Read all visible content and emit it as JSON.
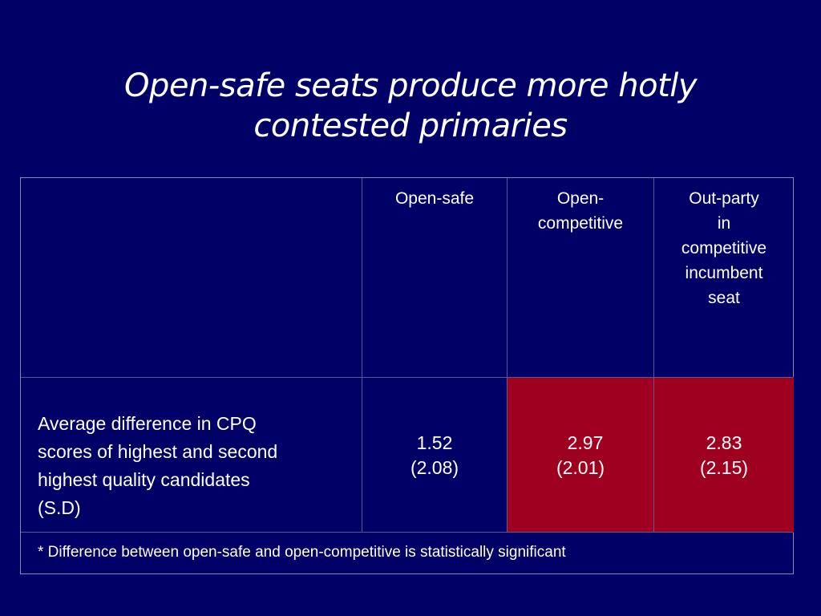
{
  "title": {
    "line1": "Open-safe seats produce more hotly",
    "line2": "contested primaries"
  },
  "table": {
    "headers": {
      "open_safe": [
        "Open-safe"
      ],
      "open_competitive": [
        "Open-",
        "competitive"
      ],
      "out_party": [
        "Out-party",
        "in",
        "competitive",
        "incumbent",
        "seat"
      ]
    },
    "row": {
      "label": [
        "Average difference in CPQ",
        "scores of highest and second",
        "highest quality candidates",
        "(S.D)"
      ],
      "open_safe": {
        "value": "1.52",
        "sd": "(2.08)"
      },
      "open_competitive": {
        "value": "2.97",
        "sd": "(2.01)"
      },
      "out_party": {
        "value": "2.83",
        "sd": "(2.15)"
      }
    },
    "note": "* Difference between open-safe and open-competitive is statistically significant"
  },
  "colors": {
    "background": "#000066",
    "highlight": "#a00020",
    "text": "#ffffff"
  }
}
